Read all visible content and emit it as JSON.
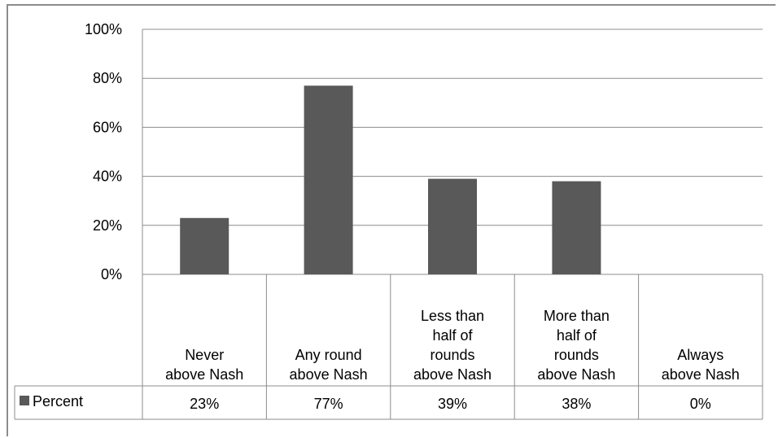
{
  "chart_data": {
    "type": "bar",
    "categories": [
      [
        "Never",
        "above Nash"
      ],
      [
        "Any round",
        "above Nash"
      ],
      [
        "Less than",
        "half of",
        "rounds",
        "above Nash"
      ],
      [
        "More than",
        "half of",
        "rounds",
        "above Nash"
      ],
      [
        "Always",
        "above Nash"
      ]
    ],
    "series": [
      {
        "name": "Percent",
        "values": [
          23,
          77,
          39,
          38,
          0
        ],
        "labels": [
          "23%",
          "77%",
          "39%",
          "38%",
          "0%"
        ],
        "color": "#595959"
      }
    ],
    "y_ticks": [
      "0%",
      "20%",
      "40%",
      "60%",
      "80%",
      "100%"
    ],
    "ylim": [
      0,
      100
    ],
    "grid": true,
    "legend": "data-table",
    "title": "",
    "xlabel": "",
    "ylabel": ""
  }
}
